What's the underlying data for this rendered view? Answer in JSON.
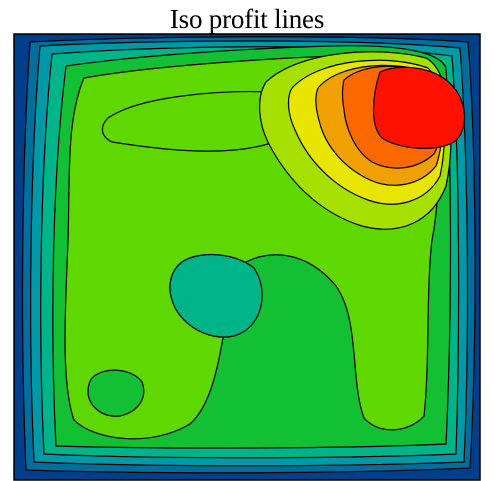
{
  "chart_data": {
    "type": "contour",
    "title": "Iso profit lines",
    "xlabel": "",
    "ylabel": "",
    "grid": false,
    "legend": "none",
    "filled": true,
    "colormap": [
      "#003f8c",
      "#006f9e",
      "#0099a8",
      "#00b48a",
      "#13c033",
      "#5ed800",
      "#a6e000",
      "#e8e600",
      "#f0a000",
      "#fc6800",
      "#ff1100"
    ],
    "line_color": "#000000",
    "features": [
      {
        "kind": "global-peak",
        "level": 10,
        "region": "top-right"
      },
      {
        "kind": "local-dip",
        "level": 3,
        "region": "center-left"
      },
      {
        "kind": "local-bump",
        "level": 4,
        "region": "bottom-left"
      }
    ]
  }
}
